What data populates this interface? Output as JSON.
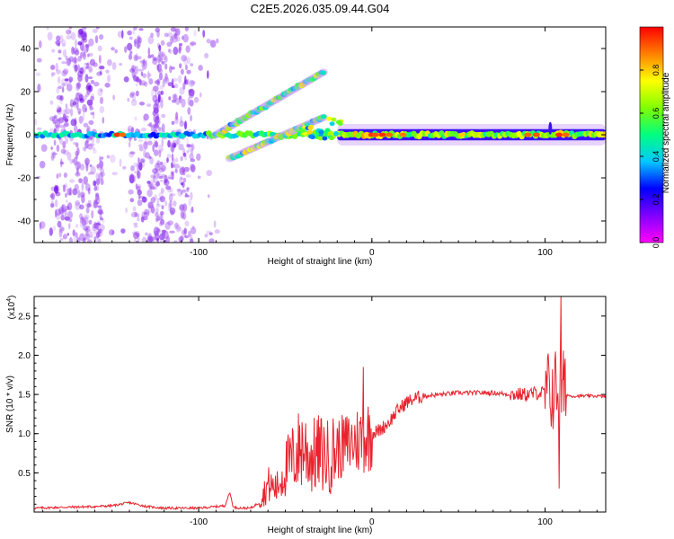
{
  "title": "C2E5.2026.035.09.44.G04",
  "chart_data": [
    {
      "type": "heatmap",
      "title": "C2E5.2026.035.09.44.G04",
      "xlabel": "Height of straight line (km)",
      "ylabel": "Frequency (Hz)",
      "xlim": [
        -195,
        135
      ],
      "ylim": [
        -50,
        50
      ],
      "x_ticks": [
        -100,
        0,
        100
      ],
      "y_ticks": [
        -40,
        -20,
        0,
        20,
        40
      ],
      "x_tick_labels": [
        "-100",
        "0",
        "100"
      ],
      "y_tick_labels": [
        "-40",
        "-20",
        "0",
        "20",
        "40"
      ],
      "colorbar": {
        "label": "Normalized spectral amplitude",
        "range": [
          0,
          1
        ],
        "ticks": [
          0.0,
          0.2,
          0.4,
          0.6,
          0.8
        ],
        "tick_labels": [
          "0.0",
          "0.2",
          "0.4",
          "0.6",
          "0.8"
        ],
        "colormap": [
          "#ff00ff",
          "#8000ff",
          "#0000ff",
          "#00c8ff",
          "#00ff80",
          "#80ff00",
          "#ffff00",
          "#ff8000",
          "#ff0000"
        ]
      },
      "features": [
        {
          "name": "noise-region",
          "x": [
            -195,
            -95
          ],
          "freq_range": [
            -50,
            50
          ],
          "amplitude": 0.05
        },
        {
          "name": "main-band",
          "x": [
            -195,
            135
          ],
          "freq": 0,
          "amplitude": 0.6
        },
        {
          "name": "upper-branch",
          "x": [
            -90,
            -28
          ],
          "freq": [
            0,
            29
          ],
          "amplitude": 0.5
        },
        {
          "name": "lower-branch",
          "x": [
            -82,
            -28
          ],
          "freq": [
            -11,
            8
          ],
          "amplitude": 0.5
        }
      ]
    },
    {
      "type": "line",
      "xlabel": "Height of straight line (km)",
      "ylabel": "SNR (10 * v/v)",
      "y_multiplier": "(x10",
      "y_multiplier_exp": "4",
      "y_multiplier_close": ")",
      "xlim": [
        -195,
        135
      ],
      "ylim": [
        0,
        2.75
      ],
      "x_ticks": [
        -100,
        0,
        100
      ],
      "y_ticks": [
        0.5,
        1.0,
        1.5,
        2.0,
        2.5
      ],
      "x_tick_labels": [
        "-100",
        "0",
        "100"
      ],
      "y_tick_labels": [
        "0.5",
        "1.0",
        "1.5",
        "2.0",
        "2.5"
      ],
      "series": [
        {
          "name": "SNR",
          "color": "#e8232d",
          "x": [
            -195,
            -180,
            -160,
            -150,
            -140,
            -130,
            -120,
            -100,
            -85,
            -82,
            -80,
            -75,
            -70,
            -65,
            -60,
            -55,
            -50,
            -45,
            -40,
            -35,
            -30,
            -25,
            -20,
            -15,
            -10,
            -5,
            0,
            5,
            10,
            15,
            20,
            25,
            30,
            40,
            50,
            60,
            70,
            80,
            90,
            95,
            100,
            105,
            108,
            110,
            112,
            115,
            120,
            130,
            135
          ],
          "values": [
            0.05,
            0.06,
            0.07,
            0.08,
            0.12,
            0.07,
            0.05,
            0.05,
            0.08,
            0.25,
            0.06,
            0.05,
            0.05,
            0.12,
            0.35,
            0.3,
            0.55,
            0.7,
            0.85,
            0.7,
            0.75,
            0.7,
            0.8,
            0.85,
            0.9,
            0.95,
            1.0,
            1.05,
            1.15,
            1.3,
            1.4,
            1.45,
            1.48,
            1.5,
            1.52,
            1.52,
            1.52,
            1.5,
            1.5,
            1.52,
            1.52,
            1.55,
            1.6,
            1.55,
            1.5,
            1.48,
            1.48,
            1.48,
            1.47
          ]
        }
      ]
    }
  ]
}
